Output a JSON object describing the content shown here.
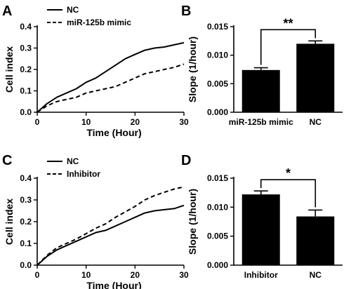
{
  "chart_data": [
    {
      "panel": "A",
      "type": "line",
      "xlabel": "Time (Hour)",
      "ylabel": "Cell index",
      "xlim": [
        0,
        30
      ],
      "ylim": [
        0.0,
        0.4
      ],
      "xticks": [
        "0",
        "10",
        "20",
        "30"
      ],
      "yticks": [
        "0.0",
        "0.1",
        "0.2",
        "0.3",
        "0.4"
      ],
      "legend_position": "top-left",
      "series": [
        {
          "name": "NC",
          "style": "solid",
          "x": [
            0,
            2,
            4,
            6,
            8,
            10,
            12,
            14,
            16,
            18,
            20,
            22,
            24,
            26,
            28,
            30
          ],
          "y": [
            0.0,
            0.04,
            0.07,
            0.09,
            0.11,
            0.14,
            0.16,
            0.19,
            0.22,
            0.25,
            0.27,
            0.29,
            0.3,
            0.305,
            0.315,
            0.325
          ]
        },
        {
          "name": "miR-125b mimic",
          "style": "dashed",
          "x": [
            0,
            2,
            4,
            6,
            8,
            10,
            12,
            14,
            16,
            18,
            20,
            22,
            24,
            26,
            28,
            30
          ],
          "y": [
            0.0,
            0.03,
            0.05,
            0.06,
            0.07,
            0.09,
            0.1,
            0.11,
            0.12,
            0.14,
            0.16,
            0.18,
            0.19,
            0.2,
            0.21,
            0.225
          ]
        }
      ]
    },
    {
      "panel": "B",
      "type": "bar",
      "ylabel": "Slope (1/hour)",
      "ylim": [
        0.0,
        0.015
      ],
      "yticks": [
        "0.000",
        "0.005",
        "0.010",
        "0.015"
      ],
      "categories": [
        "miR-125b mimic",
        "NC"
      ],
      "values": [
        0.0074,
        0.012
      ],
      "errors": [
        0.0004,
        0.0005
      ],
      "significance": "**"
    },
    {
      "panel": "C",
      "type": "line",
      "xlabel": "Time (Hour)",
      "ylabel": "Cell index",
      "xlim": [
        0,
        30
      ],
      "ylim": [
        0.0,
        0.4
      ],
      "xticks": [
        "0",
        "10",
        "20",
        "30"
      ],
      "yticks": [
        "0.0",
        "0.1",
        "0.2",
        "0.3",
        "0.4"
      ],
      "legend_position": "top-left",
      "series": [
        {
          "name": "NC",
          "style": "solid",
          "x": [
            0,
            2,
            4,
            6,
            8,
            10,
            12,
            14,
            16,
            18,
            20,
            22,
            24,
            26,
            28,
            30
          ],
          "y": [
            0.0,
            0.04,
            0.07,
            0.09,
            0.11,
            0.13,
            0.15,
            0.16,
            0.18,
            0.2,
            0.22,
            0.24,
            0.25,
            0.255,
            0.26,
            0.275
          ]
        },
        {
          "name": "Inhibitor",
          "style": "dashed",
          "x": [
            0,
            2,
            4,
            6,
            8,
            10,
            12,
            14,
            16,
            18,
            20,
            22,
            24,
            26,
            28,
            30
          ],
          "y": [
            0.0,
            0.045,
            0.08,
            0.1,
            0.12,
            0.145,
            0.17,
            0.19,
            0.22,
            0.245,
            0.27,
            0.3,
            0.32,
            0.335,
            0.35,
            0.36
          ]
        }
      ]
    },
    {
      "panel": "D",
      "type": "bar",
      "ylabel": "Slope (1/hour)",
      "ylim": [
        0.0,
        0.015
      ],
      "yticks": [
        "0.000",
        "0.005",
        "0.010",
        "0.015"
      ],
      "categories": [
        "Inhibitor",
        "NC"
      ],
      "values": [
        0.0122,
        0.0084
      ],
      "errors": [
        0.0006,
        0.0011
      ],
      "significance": "*"
    }
  ],
  "colors": {
    "ink": "#000000",
    "background": "#ffffff"
  }
}
